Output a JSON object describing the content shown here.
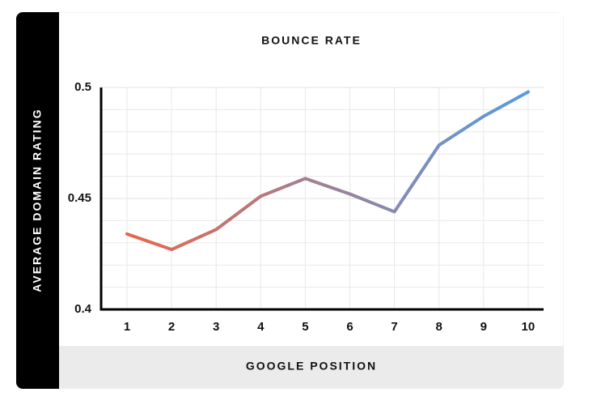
{
  "chart_data": {
    "type": "line",
    "title": "BOUNCE RATE",
    "y_label": "AVERAGE DOMAIN RATING",
    "x_label": "GOOGLE POSITION",
    "categories": [
      "1",
      "2",
      "3",
      "4",
      "5",
      "6",
      "7",
      "8",
      "9",
      "10"
    ],
    "series": [
      {
        "values": [
          0.434,
          0.427,
          0.436,
          0.451,
          0.459,
          0.452,
          0.444,
          0.474,
          0.487,
          0.498
        ],
        "gradient": [
          "#e8664a",
          "#559ce4"
        ]
      }
    ],
    "ylim": [
      0.4,
      0.5
    ],
    "yticks": [
      {
        "value": 0.4,
        "label": "0.4"
      },
      0.45,
      0.5
    ],
    "minor_yticks": [
      0.41,
      0.42,
      0.43,
      0.44,
      0.46,
      0.47,
      0.48,
      0.49
    ],
    "grid": true
  }
}
